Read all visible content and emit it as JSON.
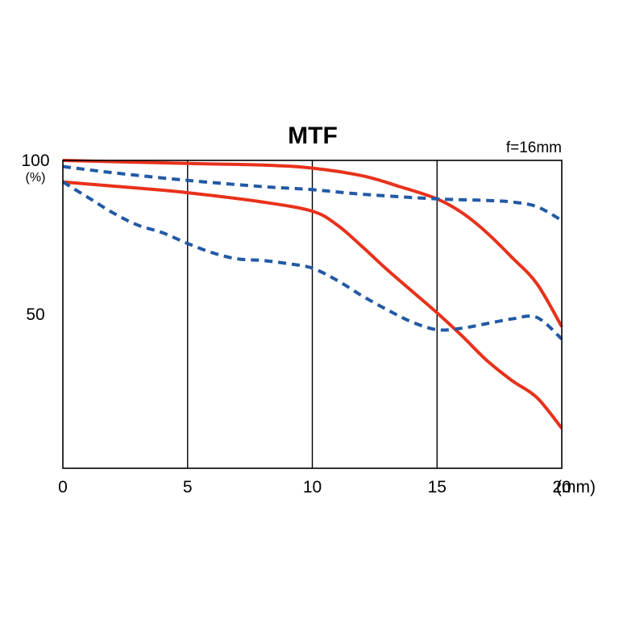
{
  "chart_data": {
    "type": "line",
    "title": "MTF",
    "annotation": "f=16mm",
    "xlabel": "",
    "x_unit": "(mm)",
    "ylabel": "",
    "y_unit": "(%)",
    "xlim": [
      0,
      20
    ],
    "ylim": [
      0,
      100
    ],
    "x_ticks": [
      0,
      5,
      10,
      15,
      20
    ],
    "x_tick_labels": [
      "0",
      "5",
      "10",
      "15",
      "20"
    ],
    "y_ticks": [
      100,
      50
    ],
    "y_tick_labels": [
      "100",
      "50"
    ],
    "grid": "vertical lines at x = 5, 10, 15",
    "legend": "none",
    "series": [
      {
        "color": "#e8311b",
        "style": "solid",
        "points": [
          [
            0,
            100
          ],
          [
            5,
            99
          ],
          [
            8,
            98.5
          ],
          [
            10,
            97.5
          ],
          [
            12,
            95
          ],
          [
            13.5,
            91.5
          ],
          [
            15,
            87.5
          ],
          [
            16,
            83
          ],
          [
            17,
            76.5
          ],
          [
            18,
            68.5
          ],
          [
            19,
            60
          ],
          [
            20,
            46
          ]
        ]
      },
      {
        "color": "#e8311b",
        "style": "solid",
        "points": [
          [
            0,
            93
          ],
          [
            3,
            91
          ],
          [
            5,
            89.5
          ],
          [
            8,
            86.5
          ],
          [
            10,
            83.5
          ],
          [
            11,
            79
          ],
          [
            12,
            72
          ],
          [
            13,
            64.5
          ],
          [
            14,
            57.5
          ],
          [
            15,
            50.5
          ],
          [
            16,
            43
          ],
          [
            17,
            35
          ],
          [
            18,
            28.5
          ],
          [
            19,
            23
          ],
          [
            20,
            13
          ]
        ]
      },
      {
        "color": "#2259a5",
        "style": "dashed",
        "points": [
          [
            0,
            98
          ],
          [
            2,
            96
          ],
          [
            5,
            93.5
          ],
          [
            8,
            91.5
          ],
          [
            10,
            90.5
          ],
          [
            12,
            89
          ],
          [
            15,
            87.5
          ],
          [
            17,
            87
          ],
          [
            18,
            86.5
          ],
          [
            19,
            85
          ],
          [
            20,
            80.5
          ]
        ]
      },
      {
        "color": "#2259a5",
        "style": "dashed",
        "points": [
          [
            0,
            93
          ],
          [
            1,
            88
          ],
          [
            2,
            83
          ],
          [
            3,
            79
          ],
          [
            4,
            76.5
          ],
          [
            5,
            73
          ],
          [
            6,
            70
          ],
          [
            7,
            68
          ],
          [
            8,
            67.5
          ],
          [
            9,
            66.5
          ],
          [
            10,
            65
          ],
          [
            11,
            61
          ],
          [
            12,
            56
          ],
          [
            13,
            51.5
          ],
          [
            14,
            47.5
          ],
          [
            15,
            45
          ],
          [
            16,
            45.5
          ],
          [
            17,
            47
          ],
          [
            18,
            48.5
          ],
          [
            19,
            49
          ],
          [
            20,
            42
          ]
        ]
      }
    ]
  }
}
